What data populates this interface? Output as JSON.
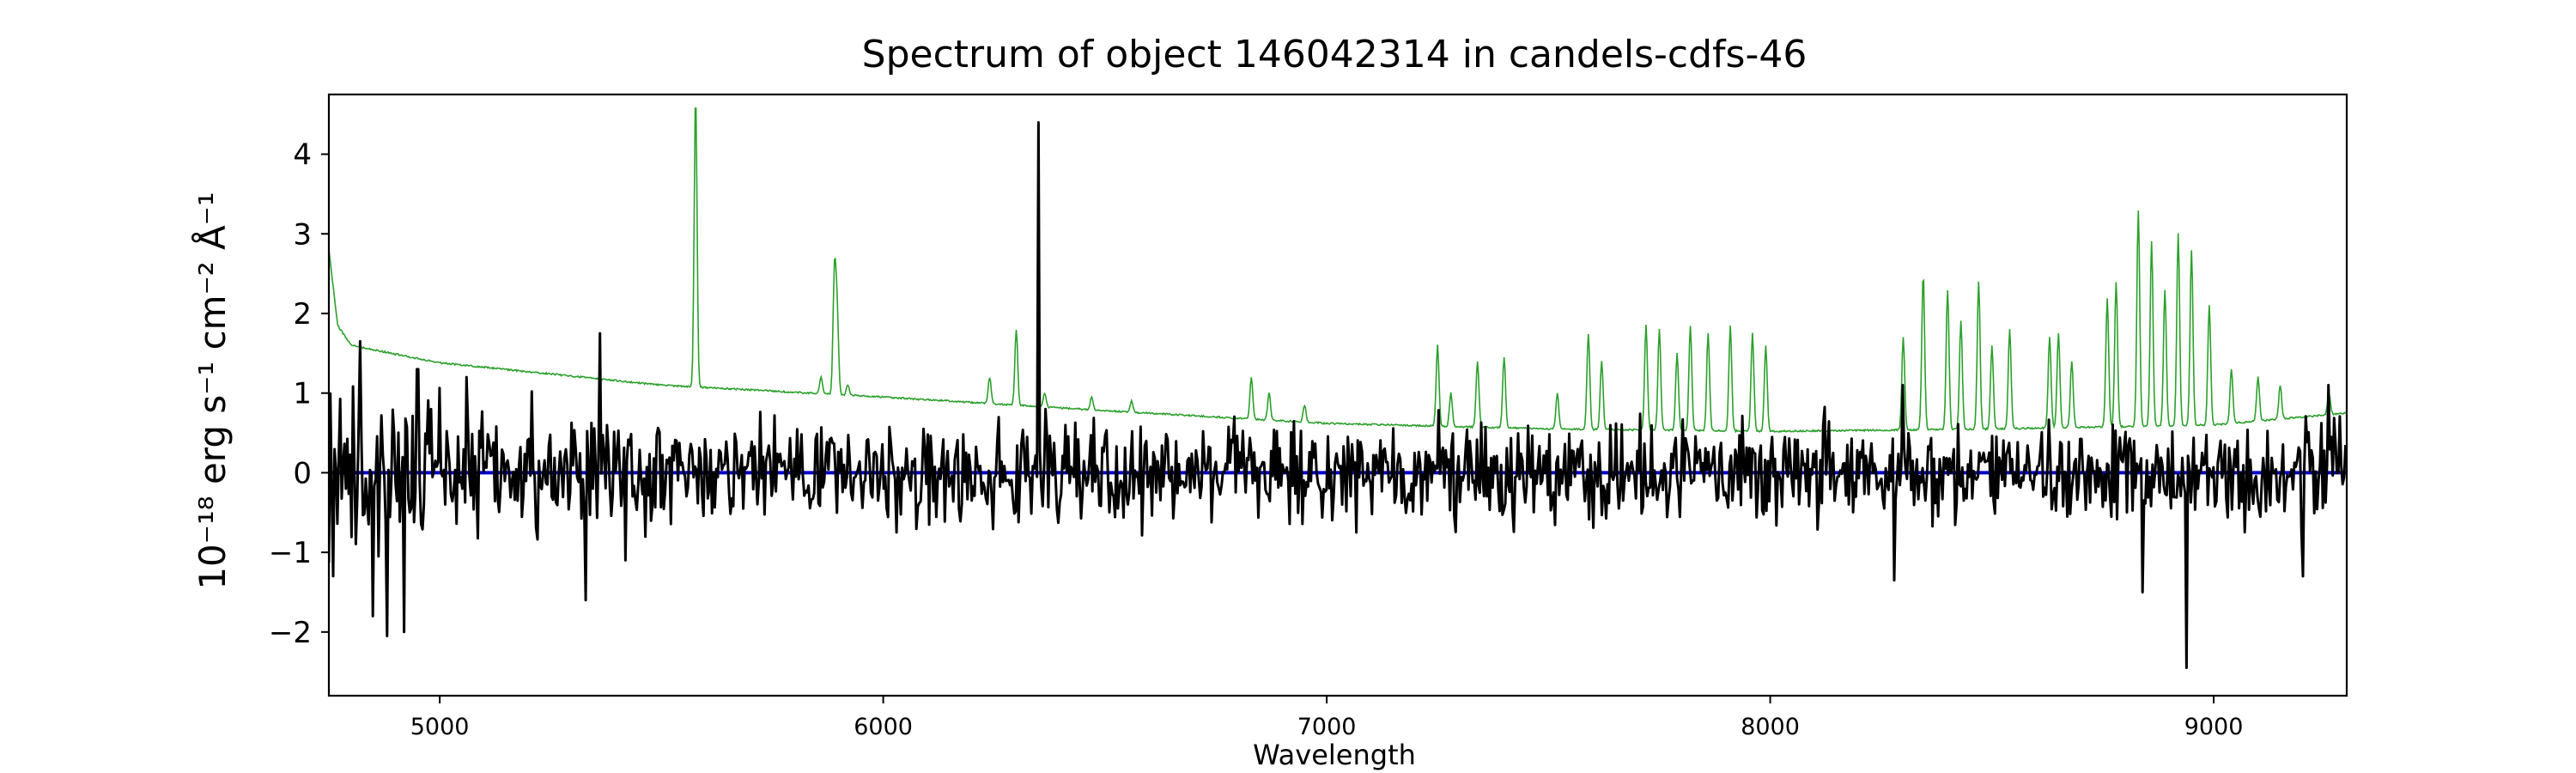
{
  "chart_data": {
    "type": "line",
    "title": "Spectrum of object 146042314 in candels-cdfs-46",
    "xlabel": "Wavelength",
    "ylabel": "10⁻¹⁸ erg s⁻¹ cm⁻² Å⁻¹",
    "xlim": [
      4750,
      9300
    ],
    "ylim": [
      -2.8,
      4.75
    ],
    "xticks": [
      5000,
      6000,
      7000,
      8000,
      9000
    ],
    "yticks": [
      -2,
      -1,
      0,
      1,
      2,
      3,
      4
    ],
    "grid": false,
    "series": [
      {
        "color": "#2ca02c",
        "role": "sky / error spectrum",
        "continuum_points": [
          [
            4750,
            2.8
          ],
          [
            4770,
            1.85
          ],
          [
            4800,
            1.6
          ],
          [
            5000,
            1.38
          ],
          [
            5500,
            1.1
          ],
          [
            6000,
            0.95
          ],
          [
            6500,
            0.78
          ],
          [
            7000,
            0.62
          ],
          [
            7500,
            0.55
          ],
          [
            8000,
            0.52
          ],
          [
            8500,
            0.55
          ],
          [
            9000,
            0.6
          ],
          [
            9300,
            0.75
          ]
        ],
        "line_peaks": [
          [
            5577,
            4.75
          ],
          [
            5890,
            2.5
          ],
          [
            5896,
            2.0
          ],
          [
            5860,
            1.2
          ],
          [
            5920,
            1.1
          ],
          [
            6300,
            1.8
          ],
          [
            6364,
            1.0
          ],
          [
            6240,
            1.2
          ],
          [
            6470,
            0.95
          ],
          [
            6560,
            0.9
          ],
          [
            6830,
            1.2
          ],
          [
            6870,
            1.0
          ],
          [
            6950,
            0.85
          ],
          [
            7250,
            1.6
          ],
          [
            7280,
            1.0
          ],
          [
            7340,
            1.4
          ],
          [
            7400,
            1.45
          ],
          [
            7520,
            1.0
          ],
          [
            7590,
            1.75
          ],
          [
            7620,
            1.4
          ],
          [
            7720,
            1.85
          ],
          [
            7750,
            1.8
          ],
          [
            7790,
            1.5
          ],
          [
            7820,
            1.85
          ],
          [
            7860,
            1.75
          ],
          [
            7910,
            1.85
          ],
          [
            7960,
            1.75
          ],
          [
            7990,
            1.6
          ],
          [
            8300,
            1.7
          ],
          [
            8345,
            2.5
          ],
          [
            8400,
            2.3
          ],
          [
            8430,
            1.9
          ],
          [
            8470,
            2.4
          ],
          [
            8500,
            1.6
          ],
          [
            8540,
            1.8
          ],
          [
            8630,
            1.7
          ],
          [
            8650,
            1.75
          ],
          [
            8680,
            1.4
          ],
          [
            8760,
            2.2
          ],
          [
            8780,
            2.4
          ],
          [
            8830,
            3.3
          ],
          [
            8860,
            2.9
          ],
          [
            8890,
            2.3
          ],
          [
            8920,
            3.0
          ],
          [
            8950,
            2.8
          ],
          [
            8990,
            2.1
          ],
          [
            9040,
            1.3
          ],
          [
            9100,
            1.2
          ],
          [
            9150,
            1.1
          ],
          [
            9260,
            1.0
          ]
        ]
      },
      {
        "color": "#0000cc",
        "role": "zero / model",
        "points": [
          [
            4750,
            0.0
          ],
          [
            9300,
            0.0
          ]
        ]
      },
      {
        "color": "#000000",
        "role": "object spectrum",
        "notable_points": [
          [
            4760,
            -1.3
          ],
          [
            4820,
            1.65
          ],
          [
            4850,
            -1.8
          ],
          [
            4880,
            -2.05
          ],
          [
            4920,
            -2.0
          ],
          [
            4950,
            1.3
          ],
          [
            5060,
            1.2
          ],
          [
            5330,
            -1.6
          ],
          [
            5360,
            1.75
          ],
          [
            5420,
            -1.1
          ],
          [
            6350,
            4.4
          ],
          [
            6365,
            0.8
          ],
          [
            8280,
            -1.35
          ],
          [
            8300,
            1.1
          ],
          [
            8840,
            -1.5
          ],
          [
            8940,
            -2.45
          ],
          [
            9200,
            -1.3
          ],
          [
            9260,
            1.1
          ]
        ],
        "noise_scale": 0.42
      }
    ]
  }
}
